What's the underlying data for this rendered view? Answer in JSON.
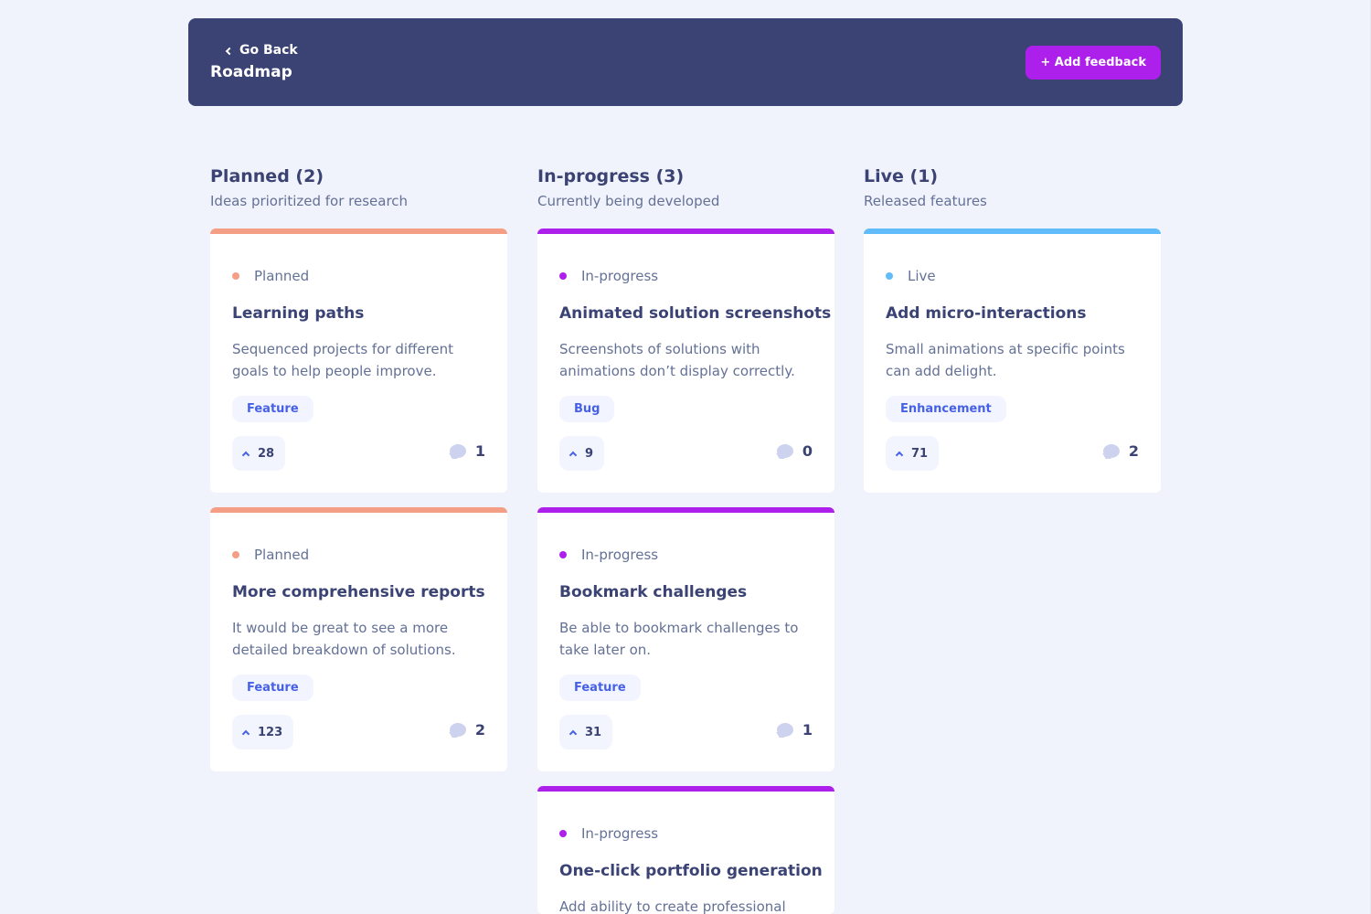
{
  "header": {
    "back_label": "Go Back",
    "title": "Roadmap",
    "add_label": "+ Add feedback"
  },
  "colors": {
    "planned": "#f49f85",
    "in_progress": "#ad1fea",
    "live": "#62bcfa"
  },
  "icons": {
    "back": "chevron-left-icon",
    "upvote": "chevron-up-icon",
    "comments": "comment-icon"
  },
  "columns": [
    {
      "title": "Planned (2)",
      "subtitle": "Ideas prioritized for research",
      "cards": [
        {
          "status": "Planned",
          "title": "Learning paths",
          "description": "Sequenced projects for different goals to help people improve.",
          "tag": "Feature",
          "upvotes": "28",
          "comments": "1"
        },
        {
          "status": "Planned",
          "title": "More comprehensive reports",
          "description": "It would be great to see a more detailed breakdown of solutions.",
          "tag": "Feature",
          "upvotes": "123",
          "comments": "2"
        }
      ]
    },
    {
      "title": "In-progress (3)",
      "subtitle": "Currently being developed",
      "cards": [
        {
          "status": "In-progress",
          "title": "Animated solution screenshots",
          "description": "Screenshots of solutions with animations don’t display correctly.",
          "tag": "Bug",
          "upvotes": "9",
          "comments": "0"
        },
        {
          "status": "In-progress",
          "title": "Bookmark challenges",
          "description": "Be able to bookmark challenges to take later on.",
          "tag": "Feature",
          "upvotes": "31",
          "comments": "1"
        },
        {
          "status": "In-progress",
          "title": "One-click portfolio generation",
          "description": "Add ability to create professional"
        }
      ]
    },
    {
      "title": "Live (1)",
      "subtitle": "Released features",
      "cards": [
        {
          "status": "Live",
          "title": "Add micro-interactions",
          "description": "Small animations at specific points can add delight.",
          "tag": "Enhancement",
          "upvotes": "71",
          "comments": "2"
        }
      ]
    }
  ]
}
